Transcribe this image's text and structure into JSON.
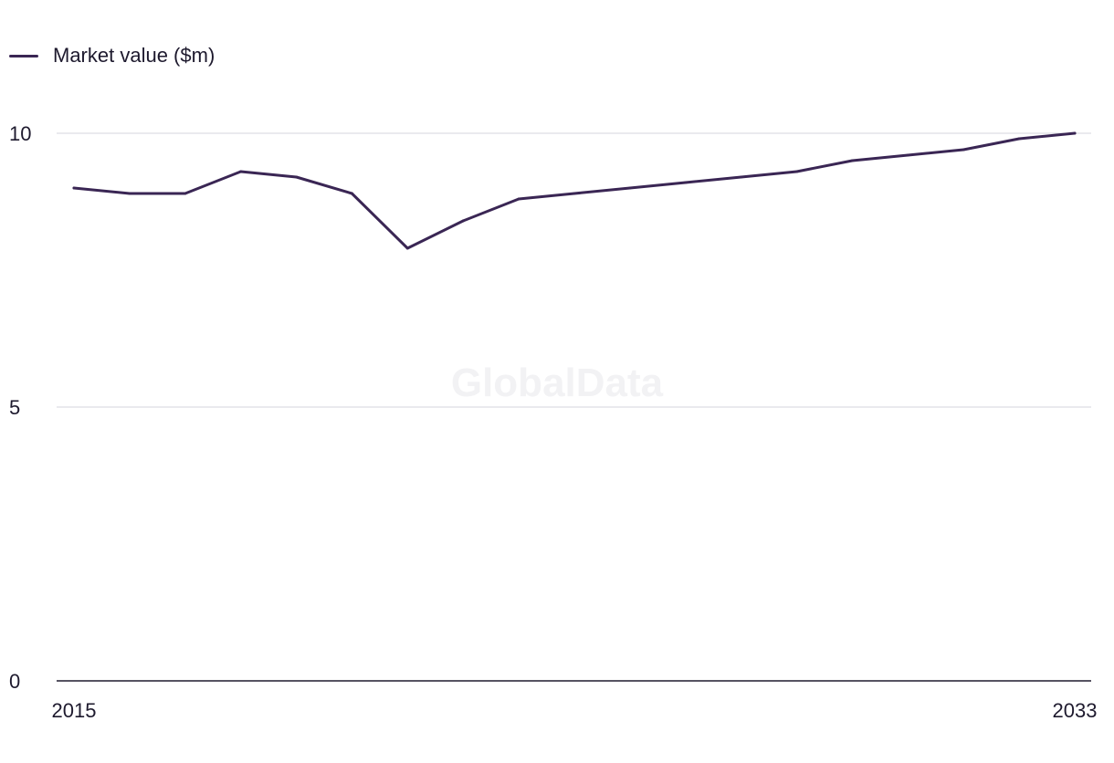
{
  "watermark": "GlobalData",
  "chart_data": {
    "type": "line",
    "title": "",
    "xlabel": "",
    "ylabel": "",
    "x": [
      2015,
      2016,
      2017,
      2018,
      2019,
      2020,
      2021,
      2022,
      2023,
      2024,
      2025,
      2026,
      2027,
      2028,
      2029,
      2030,
      2031,
      2032,
      2033
    ],
    "x_tick_labels": [
      "2015",
      "2033"
    ],
    "y_ticks": [
      0,
      5,
      10
    ],
    "y_tick_labels": [
      "0",
      "5",
      "10"
    ],
    "ylim": [
      0,
      10
    ],
    "grid": true,
    "legend_position": "top-left",
    "series": [
      {
        "name": "Market value ($m)",
        "color": "#3a2654",
        "values": [
          9.0,
          8.9,
          8.9,
          9.3,
          9.2,
          8.9,
          7.9,
          8.4,
          8.8,
          8.9,
          9.0,
          9.1,
          9.2,
          9.3,
          9.5,
          9.6,
          9.7,
          9.9,
          10.0
        ]
      }
    ]
  }
}
